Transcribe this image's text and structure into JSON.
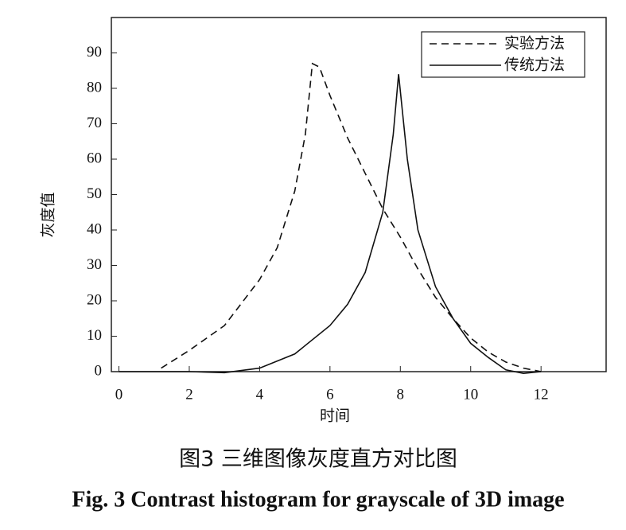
{
  "chart_data": {
    "type": "line",
    "x_label": "时间",
    "y_label": "灰度值",
    "caption_cn": "图3  三维图像灰度直方对比图",
    "caption_en": "Fig. 3  Contrast histogram for grayscale of 3D image",
    "xlim": [
      0,
      13.85
    ],
    "ylim": [
      0,
      100
    ],
    "xticks": [
      0,
      2,
      4,
      6,
      8,
      10,
      12
    ],
    "yticks": [
      0,
      10,
      20,
      30,
      40,
      50,
      60,
      70,
      80,
      90
    ],
    "legend": "upper right",
    "series": [
      {
        "name": "实验方法",
        "color": "#111111",
        "dash": true,
        "x": [
          1.2,
          2,
          3,
          4,
          4.5,
          5,
          5.3,
          5.5,
          5.7,
          6,
          6.5,
          7,
          7.5,
          8,
          8.5,
          9,
          9.5,
          10,
          10.5,
          11,
          11.5,
          12
        ],
        "values": [
          1,
          6,
          13,
          26,
          35,
          51,
          67,
          87,
          86,
          78,
          66,
          56,
          46,
          38,
          29,
          21,
          15,
          9.5,
          5.5,
          2.7,
          1,
          0
        ]
      },
      {
        "name": "传统方法",
        "color": "#111111",
        "dash": false,
        "x": [
          0,
          2,
          3,
          4,
          5,
          6,
          6.5,
          7,
          7.5,
          7.8,
          7.95,
          8.2,
          8.5,
          9,
          9.5,
          10,
          10.5,
          11,
          11.5,
          12
        ],
        "values": [
          0,
          0,
          -0.3,
          1,
          5,
          13,
          19,
          28,
          45,
          67,
          84,
          60,
          40,
          24,
          15,
          8,
          4,
          0.5,
          -0.5,
          0
        ]
      }
    ]
  }
}
